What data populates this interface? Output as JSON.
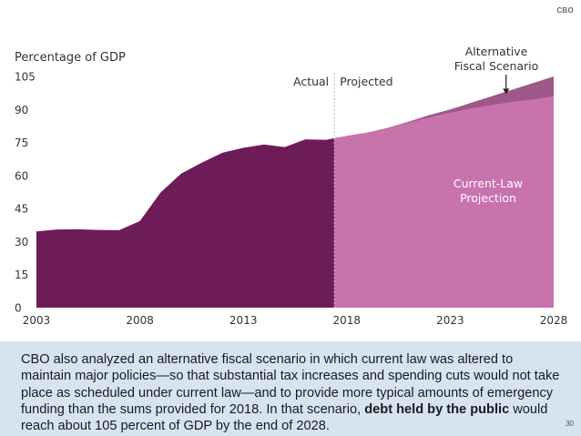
{
  "logo": "CBO",
  "page_number": "30",
  "caption": {
    "text": "CBO also analyzed an alternative fiscal scenario in which current law was altered to maintain major policies—so that substantial tax increases and spending cuts would not take place as scheduled under current law—and to provide more typical amounts of emergency funding than the sums provided for 2018. In that scenario,",
    "bold": "debt held by the public",
    "tail": "would reach about 105 percent of GDP by the end of 2028."
  },
  "colors": {
    "actual": "#6e1c58",
    "projection": "#c973ad",
    "alternative": "#9d5889",
    "caption_bg": "#d6e4f1",
    "axis_text": "#333333",
    "annotation_text": "#ffffff"
  },
  "chart_data": {
    "type": "area",
    "ylabel": "Percentage of GDP",
    "ylim": [
      0,
      105
    ],
    "yticks": [
      0,
      15,
      30,
      45,
      60,
      75,
      90,
      105
    ],
    "xlim": [
      2003,
      2028
    ],
    "xticks": [
      2003,
      2008,
      2013,
      2018,
      2023,
      2028
    ],
    "divider_x": 2017.4,
    "divider_labels": {
      "left": "Actual",
      "right": "Projected"
    },
    "series": [
      {
        "name": "Actual",
        "x": [
          2003,
          2004,
          2005,
          2006,
          2007,
          2008,
          2009,
          2010,
          2011,
          2012,
          2013,
          2014,
          2015,
          2016,
          2017,
          2017.4
        ],
        "values": [
          34.6,
          35.5,
          35.6,
          35.3,
          35.2,
          39.3,
          52.3,
          60.9,
          65.9,
          70.4,
          72.6,
          74.1,
          72.9,
          76.4,
          76.2,
          77
        ]
      },
      {
        "name": "Current-Law Projection",
        "x": [
          2017.4,
          2018,
          2019,
          2020,
          2021,
          2022,
          2023,
          2024,
          2025,
          2026,
          2027,
          2028
        ],
        "values": [
          77,
          78,
          79.5,
          81.5,
          84,
          86.5,
          88.5,
          90.5,
          92,
          93.5,
          94.5,
          96
        ]
      },
      {
        "name": "Alternative Fiscal Scenario",
        "x": [
          2017.4,
          2018,
          2019,
          2020,
          2021,
          2022,
          2023,
          2024,
          2025,
          2026,
          2027,
          2028
        ],
        "values": [
          77,
          78,
          79.5,
          81.7,
          84.5,
          87.5,
          90,
          93,
          96,
          99,
          102,
          105
        ]
      }
    ],
    "annotations": {
      "alternative": [
        "Alternative",
        "Fiscal Scenario"
      ],
      "current_law": [
        "Current-Law",
        "Projection"
      ]
    }
  }
}
